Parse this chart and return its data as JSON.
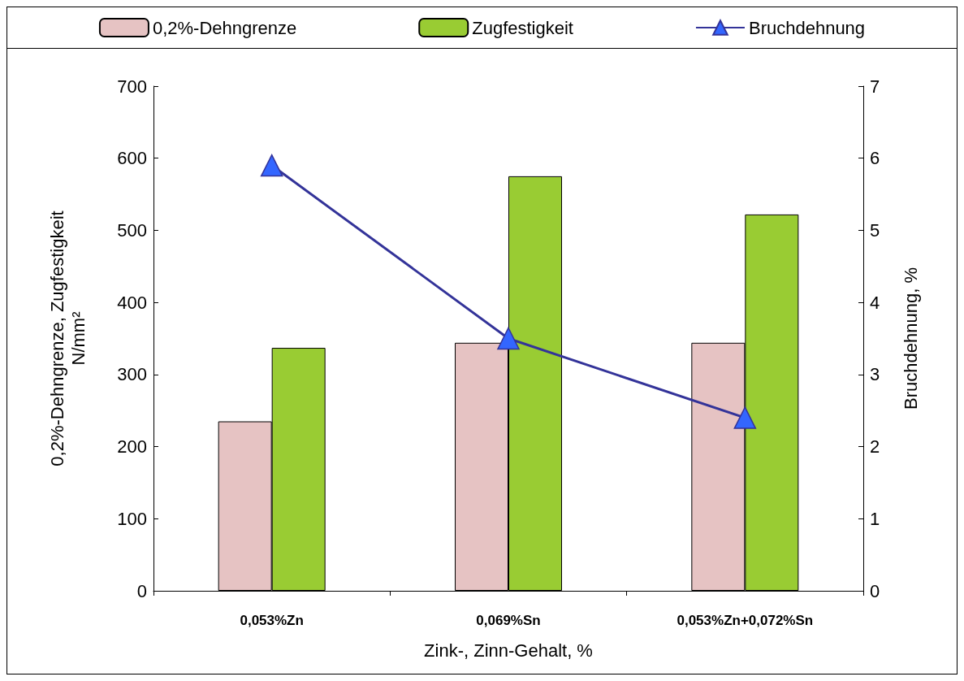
{
  "chart_data": {
    "type": "bar",
    "xlabel": "Zink-, Zinn-Gehalt, %",
    "ylabel": "0,2%-Dehngrenze, Zugfestigkeit\nN/mm²",
    "y2label": "Bruchdehnung, %",
    "categories": [
      "0,053%Zn",
      "0,069%Sn",
      "0,053%Zn+0,072%Sn"
    ],
    "series": [
      {
        "name": "0,2%-Dehngrenze",
        "color": "#e6c3c3",
        "values": [
          235,
          344,
          344
        ]
      },
      {
        "name": "Zugfestigkeit",
        "color": "#99cc33",
        "values": [
          337,
          575,
          522
        ]
      },
      {
        "name": "Bruchdehnung",
        "type": "line",
        "axis": "y2",
        "color": "#333399",
        "values": [
          5.9,
          3.5,
          2.4
        ]
      }
    ],
    "ylim": [
      0,
      700
    ],
    "yticks": [
      0,
      100,
      200,
      300,
      400,
      500,
      600,
      700
    ],
    "y2lim": [
      0,
      7
    ],
    "y2ticks": [
      0,
      1,
      2,
      3,
      4,
      5,
      6,
      7
    ],
    "legend": "top",
    "marker": "triangle",
    "line_style": "solid",
    "grid": false
  }
}
